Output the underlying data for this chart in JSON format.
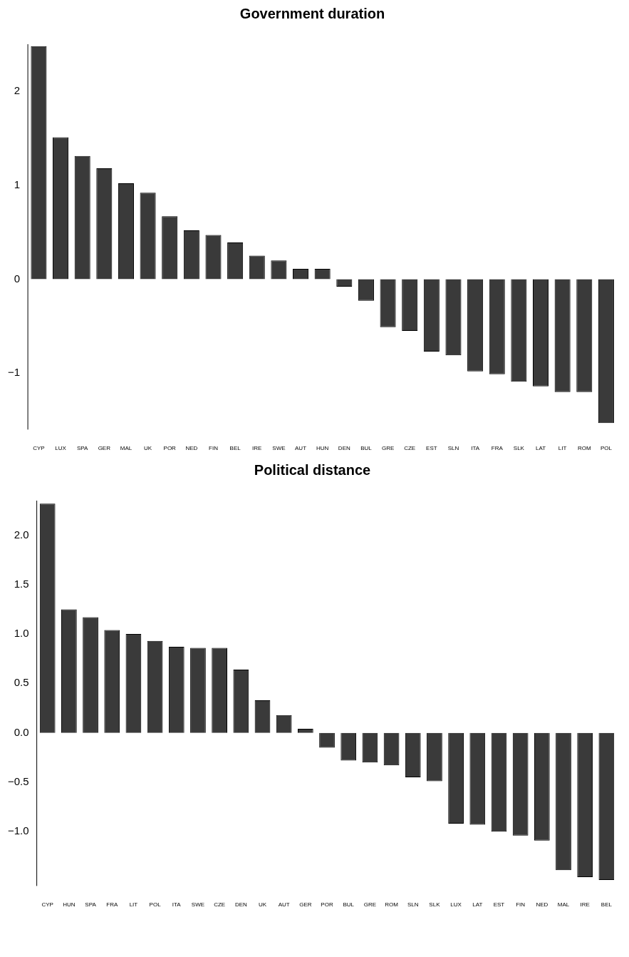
{
  "chart_data": [
    {
      "type": "bar",
      "title": "Government duration",
      "categories": [
        "CYP",
        "LUX",
        "SPA",
        "GER",
        "MAL",
        "UK",
        "POR",
        "NED",
        "FIN",
        "BEL",
        "IRE",
        "SWE",
        "AUT",
        "HUN",
        "DEN",
        "BUL",
        "GRE",
        "CZE",
        "EST",
        "SLN",
        "ITA",
        "FRA",
        "SLK",
        "LAT",
        "LIT",
        "ROM",
        "POL"
      ],
      "values": [
        2.48,
        1.51,
        1.31,
        1.18,
        1.02,
        0.92,
        0.67,
        0.52,
        0.47,
        0.39,
        0.25,
        0.2,
        0.11,
        0.11,
        -0.08,
        -0.23,
        -0.51,
        -0.55,
        -0.77,
        -0.81,
        -0.98,
        -1.01,
        -1.09,
        -1.14,
        -1.2,
        -1.2,
        -1.53
      ],
      "color": "#3a3a3a",
      "ylim": [
        -1.6,
        2.5
      ],
      "yticks": [
        {
          "value": -1,
          "label": "−1"
        },
        0,
        1,
        2
      ],
      "grid": false
    },
    {
      "type": "bar",
      "title": "Political distance",
      "categories": [
        "CYP",
        "HUN",
        "SPA",
        "FRA",
        "LIT",
        "POL",
        "ITA",
        "SWE",
        "CZE",
        "DEN",
        "UK",
        "AUT",
        "GER",
        "POR",
        "BUL",
        "GRE",
        "ROM",
        "SLN",
        "SLK",
        "LUX",
        "LAT",
        "EST",
        "FIN",
        "NED",
        "MAL",
        "IRE",
        "BEL"
      ],
      "values": [
        2.32,
        1.25,
        1.17,
        1.04,
        1.0,
        0.93,
        0.87,
        0.86,
        0.86,
        0.64,
        0.33,
        0.18,
        0.04,
        -0.15,
        -0.28,
        -0.3,
        -0.33,
        -0.45,
        -0.49,
        -0.92,
        -0.93,
        -1.0,
        -1.04,
        -1.09,
        -1.39,
        -1.46,
        -1.49
      ],
      "color": "#3a3a3a",
      "ylim": [
        -1.55,
        2.35
      ],
      "yticks": [
        {
          "value": -1,
          "label": "−1.0"
        },
        {
          "value": -0.5,
          "label": "−0.5"
        },
        {
          "value": 0,
          "label": "0.0"
        },
        {
          "value": 0.5,
          "label": "0.5"
        },
        {
          "value": 1,
          "label": "1.0"
        },
        {
          "value": 1.5,
          "label": "1.5"
        },
        {
          "value": 2,
          "label": "2.0"
        }
      ],
      "grid": false
    }
  ]
}
